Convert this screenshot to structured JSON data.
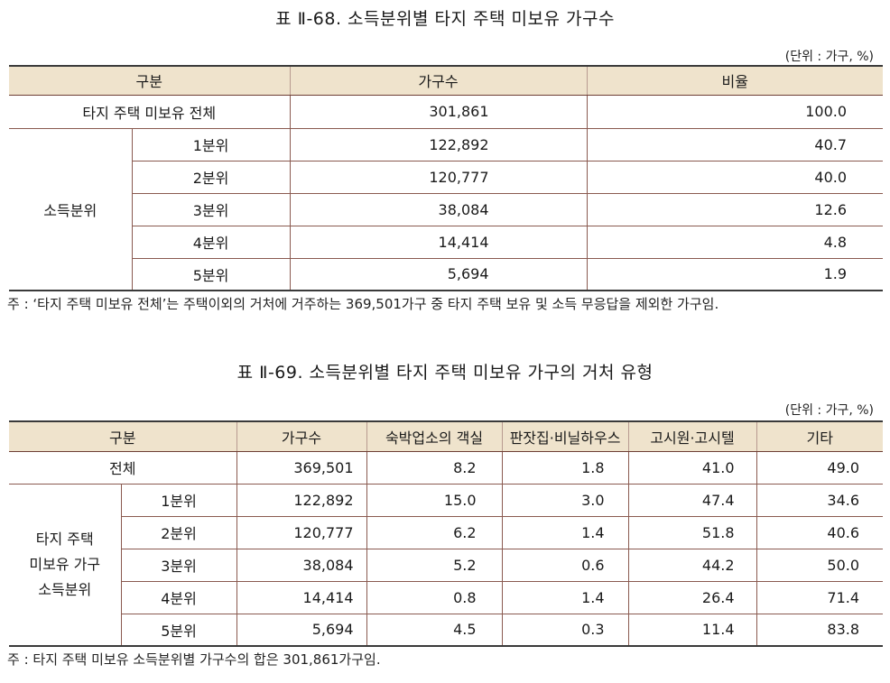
{
  "table1": {
    "title": "표 Ⅱ-68. 소득분위별 타지 주택 미보유 가구수",
    "unit": "(단위 : 가구, %)",
    "headers": [
      "구분",
      "가구수",
      "비율"
    ],
    "total": {
      "label": "타지 주택 미보유 전체",
      "count": "301,861",
      "ratio": "100.0"
    },
    "group_label": "소득분위",
    "rows": [
      {
        "label": "1분위",
        "count": "122,892",
        "ratio": "40.7"
      },
      {
        "label": "2분위",
        "count": "120,777",
        "ratio": "40.0"
      },
      {
        "label": "3분위",
        "count": "38,084",
        "ratio": "12.6"
      },
      {
        "label": "4분위",
        "count": "14,414",
        "ratio": "4.8"
      },
      {
        "label": "5분위",
        "count": "5,694",
        "ratio": "1.9"
      }
    ],
    "note": "주 : ‘타지 주택 미보유 전체’는 주택이외의 거처에 거주하는 369,501가구 중 타지 주택 보유 및 소득 무응답을 제외한 가구임."
  },
  "table2": {
    "title": "표 Ⅱ-69. 소득분위별 타지 주택 미보유 가구의 거처 유형",
    "unit": "(단위 : 가구, %)",
    "headers": [
      "구분",
      "가구수",
      "숙박업소의 객실",
      "판잣집·비닐하우스",
      "고시원·고시텔",
      "기타"
    ],
    "total": {
      "label": "전체",
      "values": [
        "369,501",
        "8.2",
        "1.8",
        "41.0",
        "49.0"
      ]
    },
    "group_label_lines": [
      "타지 주택",
      "미보유 가구",
      "소득분위"
    ],
    "rows": [
      {
        "label": "1분위",
        "values": [
          "122,892",
          "15.0",
          "3.0",
          "47.4",
          "34.6"
        ]
      },
      {
        "label": "2분위",
        "values": [
          "120,777",
          "6.2",
          "1.4",
          "51.8",
          "40.6"
        ]
      },
      {
        "label": "3분위",
        "values": [
          "38,084",
          "5.2",
          "0.6",
          "44.2",
          "50.0"
        ]
      },
      {
        "label": "4분위",
        "values": [
          "14,414",
          "0.8",
          "1.4",
          "26.4",
          "71.4"
        ]
      },
      {
        "label": "5분위",
        "values": [
          "5,694",
          "4.5",
          "0.3",
          "11.4",
          "83.8"
        ]
      }
    ],
    "note": "주 : 타지 주택 미보유 소득분위별 가구수의 합은 301,861가구임."
  }
}
